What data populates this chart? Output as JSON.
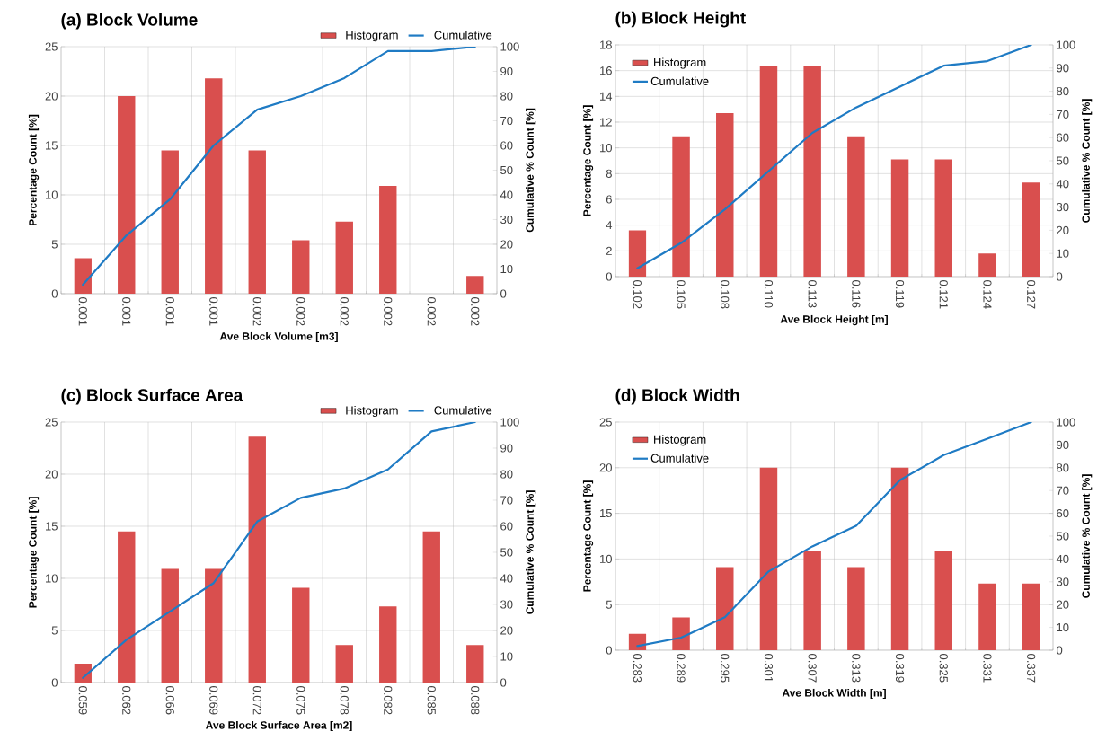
{
  "chart_data": [
    {
      "type": "bar",
      "title": "(a) Block Volume",
      "xlabel": "Ave Block Volume [m3]",
      "ylabel": "Percentage Count [%]",
      "y2label": "Cumulative % Count [%]",
      "categories": [
        "0.001",
        "0.001",
        "0.001",
        "0.001",
        "0.002",
        "0.002",
        "0.002",
        "0.002",
        "0.002",
        "0.002"
      ],
      "series": [
        {
          "name": "Histogram",
          "color": "#d94f4e",
          "values": [
            3.6,
            20,
            14.5,
            21.8,
            14.5,
            5.4,
            7.3,
            10.9,
            0,
            1.8
          ]
        },
        {
          "name": "Cumulative",
          "type": "line",
          "axis": "y2",
          "color": "#1f7bc4",
          "values": [
            3.6,
            23.6,
            38.2,
            60,
            74.5,
            80,
            87.3,
            98.2,
            98.2,
            100
          ]
        }
      ],
      "ylim": [
        0,
        25
      ],
      "yticks": [
        0,
        5,
        10,
        15,
        20,
        25
      ],
      "y2lim": [
        0,
        100
      ],
      "y2ticks": [
        0,
        10,
        20,
        30,
        40,
        50,
        60,
        70,
        80,
        90,
        100
      ],
      "grid": true,
      "legend": "top right"
    },
    {
      "type": "bar",
      "title": "(b) Block Height",
      "xlabel": "Ave Block Height [m]",
      "ylabel": "Percentage Count [%]",
      "y2label": "Cumulative % Count [%]",
      "categories": [
        "0.102",
        "0.105",
        "0.108",
        "0.110",
        "0.113",
        "0.116",
        "0.119",
        "0.121",
        "0.124",
        "0.127"
      ],
      "series": [
        {
          "name": "Histogram",
          "color": "#d94f4e",
          "values": [
            3.6,
            10.9,
            12.7,
            16.4,
            16.4,
            10.9,
            9.1,
            9.1,
            1.8,
            7.3
          ]
        },
        {
          "name": "Cumulative",
          "type": "line",
          "axis": "y2",
          "color": "#1f7bc4",
          "values": [
            3.6,
            14.5,
            29,
            45.5,
            62,
            73,
            82,
            91,
            93,
            100
          ]
        }
      ],
      "ylim": [
        0,
        18
      ],
      "yticks": [
        0,
        2,
        4,
        6,
        8,
        10,
        12,
        14,
        16,
        18
      ],
      "y2lim": [
        0,
        100
      ],
      "y2ticks": [
        0,
        10,
        20,
        30,
        40,
        50,
        60,
        70,
        80,
        90,
        100
      ],
      "grid": true,
      "legend": "top left"
    },
    {
      "type": "bar",
      "title": "(c) Block Surface Area",
      "xlabel": "Ave Block Surface Area [m2]",
      "ylabel": "Percentage Count [%]",
      "y2label": "Cumulative % Count [%]",
      "categories": [
        "0.059",
        "0.062",
        "0.066",
        "0.069",
        "0.072",
        "0.075",
        "0.078",
        "0.082",
        "0.085",
        "0.088"
      ],
      "series": [
        {
          "name": "Histogram",
          "color": "#d94f4e",
          "values": [
            1.8,
            14.5,
            10.9,
            10.9,
            23.6,
            9.1,
            3.6,
            7.3,
            14.5,
            3.6
          ]
        },
        {
          "name": "Cumulative",
          "type": "line",
          "axis": "y2",
          "color": "#1f7bc4",
          "values": [
            1.8,
            16.4,
            27.3,
            38.2,
            61.8,
            70.9,
            74.5,
            81.8,
            96.4,
            100
          ]
        }
      ],
      "ylim": [
        0,
        25
      ],
      "yticks": [
        0,
        5,
        10,
        15,
        20,
        25
      ],
      "y2lim": [
        0,
        100
      ],
      "y2ticks": [
        0,
        10,
        20,
        30,
        40,
        50,
        60,
        70,
        80,
        90,
        100
      ],
      "grid": true,
      "legend": "top right"
    },
    {
      "type": "bar",
      "title": "(d) Block Width",
      "xlabel": "Ave Block Width [m]",
      "ylabel": "Percentage Count [%]",
      "y2label": "Cumulative % Count [%]",
      "categories": [
        "0.283",
        "0.289",
        "0.295",
        "0.301",
        "0.307",
        "0.313",
        "0.319",
        "0.325",
        "0.331",
        "0.337"
      ],
      "series": [
        {
          "name": "Histogram",
          "color": "#d94f4e",
          "values": [
            1.8,
            3.6,
            9.1,
            20,
            10.9,
            9.1,
            20,
            10.9,
            7.3,
            7.3
          ]
        },
        {
          "name": "Cumulative",
          "type": "line",
          "axis": "y2",
          "color": "#1f7bc4",
          "values": [
            1.8,
            5.5,
            14.5,
            34.5,
            45.5,
            54.5,
            74.5,
            85.5,
            92.7,
            100
          ]
        }
      ],
      "ylim": [
        0,
        25
      ],
      "yticks": [
        0,
        5,
        10,
        15,
        20,
        25
      ],
      "y2lim": [
        0,
        100
      ],
      "y2ticks": [
        0,
        10,
        20,
        30,
        40,
        50,
        60,
        70,
        80,
        90,
        100
      ],
      "grid": true,
      "legend": "top left"
    }
  ]
}
